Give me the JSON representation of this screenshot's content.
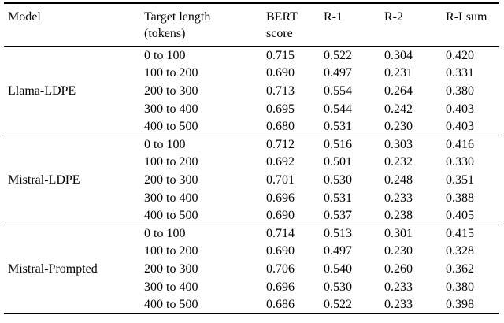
{
  "page": {
    "background_color": "#ffffff",
    "text_color": "#000000",
    "rule_color": "#000000"
  },
  "table": {
    "headers": {
      "model": "Model",
      "target_length_line1": "Target length",
      "target_length_line2": "(tokens)",
      "bert_line1": "BERT",
      "bert_line2": "score",
      "r1": "R-1",
      "r2": "R-2",
      "rlsum": "R-Lsum"
    },
    "groups": [
      {
        "model": "Llama-LDPE",
        "rows": [
          {
            "range": "0 to 100",
            "bert": "0.715",
            "r1": "0.522",
            "r2": "0.304",
            "rlsum": "0.420"
          },
          {
            "range": "100 to 200",
            "bert": "0.690",
            "r1": "0.497",
            "r2": "0.231",
            "rlsum": "0.331"
          },
          {
            "range": "200 to 300",
            "bert": "0.713",
            "r1": "0.554",
            "r2": "0.264",
            "rlsum": "0.380"
          },
          {
            "range": "300 to 400",
            "bert": "0.695",
            "r1": "0.544",
            "r2": "0.242",
            "rlsum": "0.403"
          },
          {
            "range": "400 to 500",
            "bert": "0.680",
            "r1": "0.531",
            "r2": "0.230",
            "rlsum": "0.403"
          }
        ]
      },
      {
        "model": "Mistral-LDPE",
        "rows": [
          {
            "range": "0 to 100",
            "bert": "0.712",
            "r1": "0.516",
            "r2": "0.303",
            "rlsum": "0.416"
          },
          {
            "range": "100 to 200",
            "bert": "0.692",
            "r1": "0.501",
            "r2": "0.232",
            "rlsum": "0.330"
          },
          {
            "range": "200 to 300",
            "bert": "0.701",
            "r1": "0.530",
            "r2": "0.248",
            "rlsum": "0.351"
          },
          {
            "range": "300 to 400",
            "bert": "0.696",
            "r1": "0.531",
            "r2": "0.233",
            "rlsum": "0.388"
          },
          {
            "range": "400 to 500",
            "bert": "0.690",
            "r1": "0.537",
            "r2": "0.238",
            "rlsum": "0.405"
          }
        ]
      },
      {
        "model": "Mistral-Prompted",
        "rows": [
          {
            "range": "0 to 100",
            "bert": "0.714",
            "r1": "0.513",
            "r2": "0.301",
            "rlsum": "0.415"
          },
          {
            "range": "100 to 200",
            "bert": "0.690",
            "r1": "0.497",
            "r2": "0.230",
            "rlsum": "0.328"
          },
          {
            "range": "200 to 300",
            "bert": "0.706",
            "r1": "0.540",
            "r2": "0.260",
            "rlsum": "0.362"
          },
          {
            "range": "300 to 400",
            "bert": "0.696",
            "r1": "0.530",
            "r2": "0.233",
            "rlsum": "0.380"
          },
          {
            "range": "400 to 500",
            "bert": "0.686",
            "r1": "0.522",
            "r2": "0.233",
            "rlsum": "0.398"
          }
        ]
      }
    ]
  }
}
